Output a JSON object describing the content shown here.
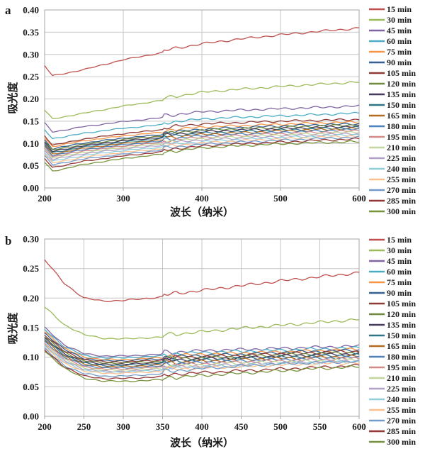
{
  "style": {
    "background": "#ffffff",
    "grid_color": "#c6c6c6",
    "border_color": "#a6a6a6",
    "text_color": "#1a1a1a"
  },
  "chart_data": [
    {
      "type": "line",
      "corner_label": "a",
      "xlabel": "波长（纳米）",
      "ylabel": "吸光度",
      "xlim": [
        200,
        600
      ],
      "ylim": [
        0,
        0.4
      ],
      "xticks": [
        200,
        300,
        400,
        500,
        600
      ],
      "yticks": [
        0,
        0.05,
        0.1,
        0.15,
        0.2,
        0.25,
        0.3,
        0.35,
        0.4
      ],
      "grid": true,
      "legend_position": "right",
      "lamp_step": 0.004,
      "x": [
        200,
        210,
        225,
        250,
        300,
        350,
        400,
        450,
        500,
        550,
        600
      ],
      "series": [
        {
          "name": "15 min",
          "color": "#C0504D",
          "values": [
            0.275,
            0.252,
            0.257,
            0.266,
            0.288,
            0.304,
            0.32,
            0.331,
            0.34,
            0.348,
            0.355
          ]
        },
        {
          "name": "30 min",
          "color": "#9BBB59",
          "values": [
            0.175,
            0.155,
            0.16,
            0.168,
            0.184,
            0.197,
            0.211,
            0.218,
            0.224,
            0.229,
            0.234
          ]
        },
        {
          "name": "45 min",
          "color": "#8064A2",
          "values": [
            0.146,
            0.126,
            0.13,
            0.138,
            0.149,
            0.158,
            0.167,
            0.171,
            0.174,
            0.177,
            0.18
          ]
        },
        {
          "name": "60 min",
          "color": "#4BACC6",
          "values": [
            0.131,
            0.111,
            0.115,
            0.123,
            0.134,
            0.142,
            0.151,
            0.155,
            0.158,
            0.161,
            0.164
          ]
        },
        {
          "name": "75 min",
          "color": "#F79646",
          "values": [
            0.113,
            0.093,
            0.098,
            0.106,
            0.117,
            0.125,
            0.133,
            0.136,
            0.139,
            0.142,
            0.144
          ]
        },
        {
          "name": "90 min",
          "color": "#376092",
          "values": [
            0.108,
            0.088,
            0.093,
            0.101,
            0.112,
            0.12,
            0.128,
            0.132,
            0.135,
            0.138,
            0.14
          ]
        },
        {
          "name": "105 min",
          "color": "#8E3B37",
          "values": [
            0.118,
            0.096,
            0.101,
            0.11,
            0.122,
            0.131,
            0.14,
            0.143,
            0.146,
            0.148,
            0.15
          ]
        },
        {
          "name": "120 min",
          "color": "#71893F",
          "values": [
            0.105,
            0.085,
            0.09,
            0.098,
            0.109,
            0.117,
            0.126,
            0.129,
            0.132,
            0.135,
            0.138
          ]
        },
        {
          "name": "135 min",
          "color": "#473A5E",
          "values": [
            0.102,
            0.082,
            0.087,
            0.095,
            0.106,
            0.114,
            0.122,
            0.126,
            0.129,
            0.132,
            0.135
          ]
        },
        {
          "name": "150 min",
          "color": "#2E7586",
          "values": [
            0.099,
            0.079,
            0.084,
            0.092,
            0.103,
            0.111,
            0.119,
            0.123,
            0.126,
            0.129,
            0.132
          ]
        },
        {
          "name": "165 min",
          "color": "#B26B21",
          "values": [
            0.096,
            0.076,
            0.081,
            0.089,
            0.1,
            0.108,
            0.116,
            0.12,
            0.124,
            0.127,
            0.13
          ]
        },
        {
          "name": "180 min",
          "color": "#4F81BD",
          "values": [
            0.093,
            0.073,
            0.078,
            0.086,
            0.097,
            0.105,
            0.113,
            0.117,
            0.121,
            0.124,
            0.128
          ]
        },
        {
          "name": "195 min",
          "color": "#D28B88",
          "values": [
            0.09,
            0.07,
            0.075,
            0.083,
            0.094,
            0.102,
            0.11,
            0.114,
            0.118,
            0.121,
            0.125
          ]
        },
        {
          "name": "210 min",
          "color": "#C3D69B",
          "values": [
            0.087,
            0.067,
            0.072,
            0.08,
            0.091,
            0.099,
            0.107,
            0.111,
            0.115,
            0.118,
            0.122
          ]
        },
        {
          "name": "225 min",
          "color": "#B2A1C7",
          "values": [
            0.084,
            0.064,
            0.069,
            0.077,
            0.088,
            0.096,
            0.104,
            0.108,
            0.112,
            0.115,
            0.119
          ]
        },
        {
          "name": "240 min",
          "color": "#92CDDC",
          "values": [
            0.08,
            0.06,
            0.065,
            0.073,
            0.084,
            0.092,
            0.1,
            0.105,
            0.109,
            0.113,
            0.116
          ]
        },
        {
          "name": "255 min",
          "color": "#FAC08F",
          "values": [
            0.076,
            0.056,
            0.061,
            0.069,
            0.08,
            0.088,
            0.097,
            0.102,
            0.106,
            0.11,
            0.113
          ]
        },
        {
          "name": "270 min",
          "color": "#729ACA",
          "values": [
            0.072,
            0.052,
            0.057,
            0.065,
            0.076,
            0.085,
            0.094,
            0.099,
            0.103,
            0.107,
            0.11
          ]
        },
        {
          "name": "285 min",
          "color": "#953735",
          "values": [
            0.066,
            0.046,
            0.051,
            0.06,
            0.072,
            0.081,
            0.09,
            0.095,
            0.099,
            0.103,
            0.106
          ]
        },
        {
          "name": "300 min",
          "color": "#77933C",
          "values": [
            0.058,
            0.038,
            0.043,
            0.053,
            0.066,
            0.076,
            0.086,
            0.091,
            0.095,
            0.098,
            0.1
          ]
        }
      ]
    },
    {
      "type": "line",
      "corner_label": "b",
      "xlabel": "波长（纳米）",
      "ylabel": "吸光度",
      "xlim": [
        200,
        600
      ],
      "ylim": [
        0,
        0.3
      ],
      "xticks": [
        200,
        250,
        300,
        350,
        400,
        450,
        500,
        550,
        600
      ],
      "yticks": [
        0,
        0.05,
        0.1,
        0.15,
        0.2,
        0.25,
        0.3
      ],
      "grid": true,
      "legend_position": "right",
      "lamp_step": 0.003,
      "x": [
        200,
        225,
        250,
        275,
        300,
        350,
        400,
        450,
        500,
        550,
        600
      ],
      "series": [
        {
          "name": "15 min",
          "color": "#C0504D",
          "values": [
            0.265,
            0.225,
            0.2,
            0.195,
            0.196,
            0.202,
            0.21,
            0.218,
            0.226,
            0.233,
            0.24
          ]
        },
        {
          "name": "30 min",
          "color": "#9BBB59",
          "values": [
            0.185,
            0.155,
            0.138,
            0.132,
            0.131,
            0.134,
            0.14,
            0.146,
            0.151,
            0.156,
            0.161
          ]
        },
        {
          "name": "45 min",
          "color": "#8064A2",
          "values": [
            0.15,
            0.121,
            0.106,
            0.102,
            0.102,
            0.105,
            0.108,
            0.11,
            0.112,
            0.114,
            0.116
          ]
        },
        {
          "name": "60 min",
          "color": "#4BACC6",
          "values": [
            0.147,
            0.118,
            0.103,
            0.099,
            0.099,
            0.102,
            0.105,
            0.107,
            0.109,
            0.111,
            0.113
          ]
        },
        {
          "name": "75 min",
          "color": "#F79646",
          "values": [
            0.144,
            0.115,
            0.1,
            0.096,
            0.096,
            0.099,
            0.102,
            0.104,
            0.106,
            0.108,
            0.111
          ]
        },
        {
          "name": "90 min",
          "color": "#376092",
          "values": [
            0.141,
            0.113,
            0.098,
            0.094,
            0.094,
            0.097,
            0.1,
            0.102,
            0.105,
            0.107,
            0.109
          ]
        },
        {
          "name": "105 min",
          "color": "#8E3B37",
          "values": [
            0.138,
            0.11,
            0.096,
            0.092,
            0.092,
            0.095,
            0.098,
            0.1,
            0.103,
            0.105,
            0.107
          ]
        },
        {
          "name": "120 min",
          "color": "#71893F",
          "values": [
            0.135,
            0.108,
            0.094,
            0.09,
            0.09,
            0.093,
            0.096,
            0.098,
            0.101,
            0.103,
            0.105
          ]
        },
        {
          "name": "135 min",
          "color": "#473A5E",
          "values": [
            0.132,
            0.106,
            0.092,
            0.088,
            0.088,
            0.091,
            0.094,
            0.096,
            0.099,
            0.101,
            0.103
          ]
        },
        {
          "name": "150 min",
          "color": "#2E7586",
          "values": [
            0.13,
            0.104,
            0.09,
            0.086,
            0.086,
            0.089,
            0.092,
            0.095,
            0.097,
            0.099,
            0.101
          ]
        },
        {
          "name": "165 min",
          "color": "#B26B21",
          "values": [
            0.128,
            0.102,
            0.088,
            0.084,
            0.084,
            0.087,
            0.09,
            0.093,
            0.095,
            0.097,
            0.099
          ]
        },
        {
          "name": "180 min",
          "color": "#4F81BD",
          "values": [
            0.126,
            0.1,
            0.086,
            0.082,
            0.082,
            0.085,
            0.088,
            0.091,
            0.093,
            0.095,
            0.097
          ]
        },
        {
          "name": "195 min",
          "color": "#D28B88",
          "values": [
            0.124,
            0.098,
            0.084,
            0.08,
            0.08,
            0.083,
            0.086,
            0.089,
            0.091,
            0.093,
            0.095
          ]
        },
        {
          "name": "210 min",
          "color": "#C3D69B",
          "values": [
            0.122,
            0.096,
            0.082,
            0.078,
            0.078,
            0.081,
            0.084,
            0.087,
            0.089,
            0.091,
            0.093
          ]
        },
        {
          "name": "225 min",
          "color": "#B2A1C7",
          "values": [
            0.12,
            0.094,
            0.08,
            0.076,
            0.076,
            0.079,
            0.082,
            0.085,
            0.087,
            0.089,
            0.091
          ]
        },
        {
          "name": "240 min",
          "color": "#92CDDC",
          "values": [
            0.118,
            0.092,
            0.078,
            0.075,
            0.075,
            0.078,
            0.081,
            0.083,
            0.086,
            0.088,
            0.09
          ]
        },
        {
          "name": "255 min",
          "color": "#FAC08F",
          "values": [
            0.116,
            0.09,
            0.076,
            0.073,
            0.073,
            0.076,
            0.079,
            0.081,
            0.084,
            0.086,
            0.088
          ]
        },
        {
          "name": "270 min",
          "color": "#729ACA",
          "values": [
            0.114,
            0.086,
            0.072,
            0.068,
            0.068,
            0.072,
            0.078,
            0.082,
            0.086,
            0.088,
            0.09
          ]
        },
        {
          "name": "285 min",
          "color": "#953735",
          "values": [
            0.112,
            0.084,
            0.068,
            0.064,
            0.064,
            0.067,
            0.071,
            0.074,
            0.077,
            0.08,
            0.083
          ]
        },
        {
          "name": "300 min",
          "color": "#77933C",
          "values": [
            0.11,
            0.082,
            0.064,
            0.06,
            0.059,
            0.062,
            0.066,
            0.07,
            0.074,
            0.078,
            0.081
          ]
        }
      ]
    }
  ]
}
